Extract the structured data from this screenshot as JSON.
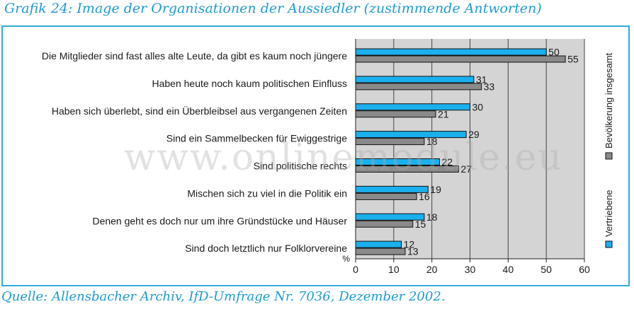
{
  "header": {
    "title": "Grafik 24: Image der Organisationen der Aussiedler (zustimmende Antworten)"
  },
  "footer": {
    "source": "Quelle: Allensbacher Archiv, IfD-Umfrage Nr. 7036, Dezember 2002."
  },
  "watermark": "www.onlinemodule.eu",
  "colors": {
    "accent": "#33a9dc",
    "plot_background": "#d4d4d4",
    "series_1": "#1ab0ee",
    "series_2": "#8a8a8a"
  },
  "chart_data": {
    "type": "bar",
    "orientation": "horizontal",
    "categories": [
      "Die Mitglieder sind fast alles alte Leute, da gibt es kaum noch jüngere",
      "Haben heute noch kaum politischen Einfluss",
      "Haben sich überlebt, sind ein Überbleibsel aus vergangenen Zeiten",
      "Sind ein Sammelbecken für Ewiggestrige",
      "Sind politische rechts",
      "Mischen sich zu viel in die Politik ein",
      "Denen geht es doch nur um ihre Gründstücke und Häuser",
      "Sind doch letztlich nur Folklorvereine"
    ],
    "series": [
      {
        "name": "Vertriebene",
        "values": [
          50,
          31,
          30,
          29,
          22,
          19,
          18,
          12
        ]
      },
      {
        "name": "Bevölkerung insgesamt",
        "values": [
          55,
          33,
          21,
          18,
          27,
          16,
          15,
          13
        ]
      }
    ],
    "x_ticks": [
      "0",
      "10",
      "20",
      "30",
      "40",
      "50",
      "60"
    ],
    "xlim": [
      0,
      60
    ],
    "unit_label": "%",
    "grid": true,
    "legend_position": "right, vertical"
  }
}
